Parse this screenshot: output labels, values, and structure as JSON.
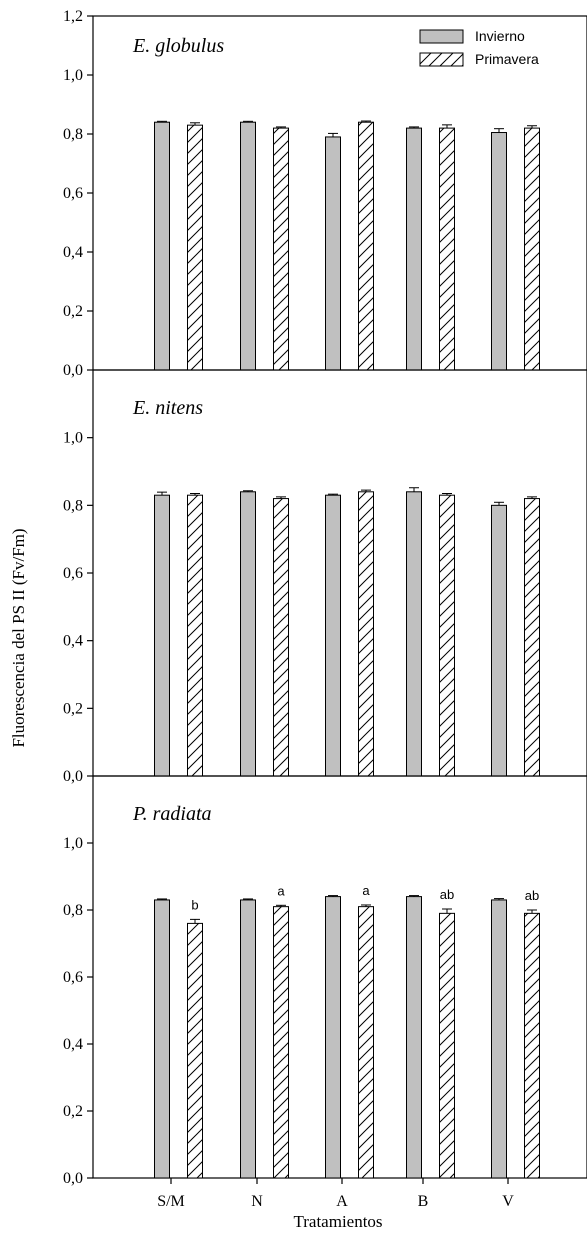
{
  "chart_data": {
    "type": "bar",
    "ylabel": "Fluorescencia del PS II (Fv/Fm)",
    "xlabel": "Tratamientos",
    "categories": [
      "S/M",
      "N",
      "A",
      "B",
      "V"
    ],
    "ylim": [
      0.0,
      1.2
    ],
    "yticks": [
      "0,0",
      "0,2",
      "0,4",
      "0,6",
      "0,8",
      "1,0",
      "1,2"
    ],
    "legend": {
      "position": "top-right",
      "entries": [
        {
          "name": "Invierno",
          "style": "solid",
          "color": "#c0c0c0"
        },
        {
          "name": "Primavera",
          "style": "hatched",
          "color": "#ffffff"
        }
      ]
    },
    "panels": [
      {
        "title": "E. globulus",
        "series": [
          {
            "name": "Invierno",
            "values": [
              0.84,
              0.84,
              0.79,
              0.82,
              0.805
            ],
            "errors": [
              0.003,
              0.003,
              0.012,
              0.004,
              0.013
            ]
          },
          {
            "name": "Primavera",
            "values": [
              0.83,
              0.82,
              0.84,
              0.82,
              0.82
            ],
            "errors": [
              0.008,
              0.004,
              0.004,
              0.011,
              0.008
            ]
          }
        ],
        "annotations": []
      },
      {
        "title": "E. nitens",
        "series": [
          {
            "name": "Invierno",
            "values": [
              0.83,
              0.84,
              0.83,
              0.84,
              0.8
            ],
            "errors": [
              0.009,
              0.003,
              0.003,
              0.012,
              0.009
            ]
          },
          {
            "name": "Primavera",
            "values": [
              0.83,
              0.82,
              0.84,
              0.83,
              0.82
            ],
            "errors": [
              0.005,
              0.005,
              0.005,
              0.005,
              0.005
            ]
          }
        ],
        "annotations": []
      },
      {
        "title": "P. radiata",
        "series": [
          {
            "name": "Invierno",
            "values": [
              0.83,
              0.83,
              0.84,
              0.84,
              0.83
            ],
            "errors": [
              0.003,
              0.003,
              0.003,
              0.003,
              0.004
            ]
          },
          {
            "name": "Primavera",
            "values": [
              0.76,
              0.81,
              0.81,
              0.79,
              0.79
            ],
            "errors": [
              0.012,
              0.004,
              0.005,
              0.013,
              0.01
            ]
          }
        ],
        "annotations": [
          "b",
          "a",
          "a",
          "ab",
          "ab"
        ]
      }
    ]
  }
}
